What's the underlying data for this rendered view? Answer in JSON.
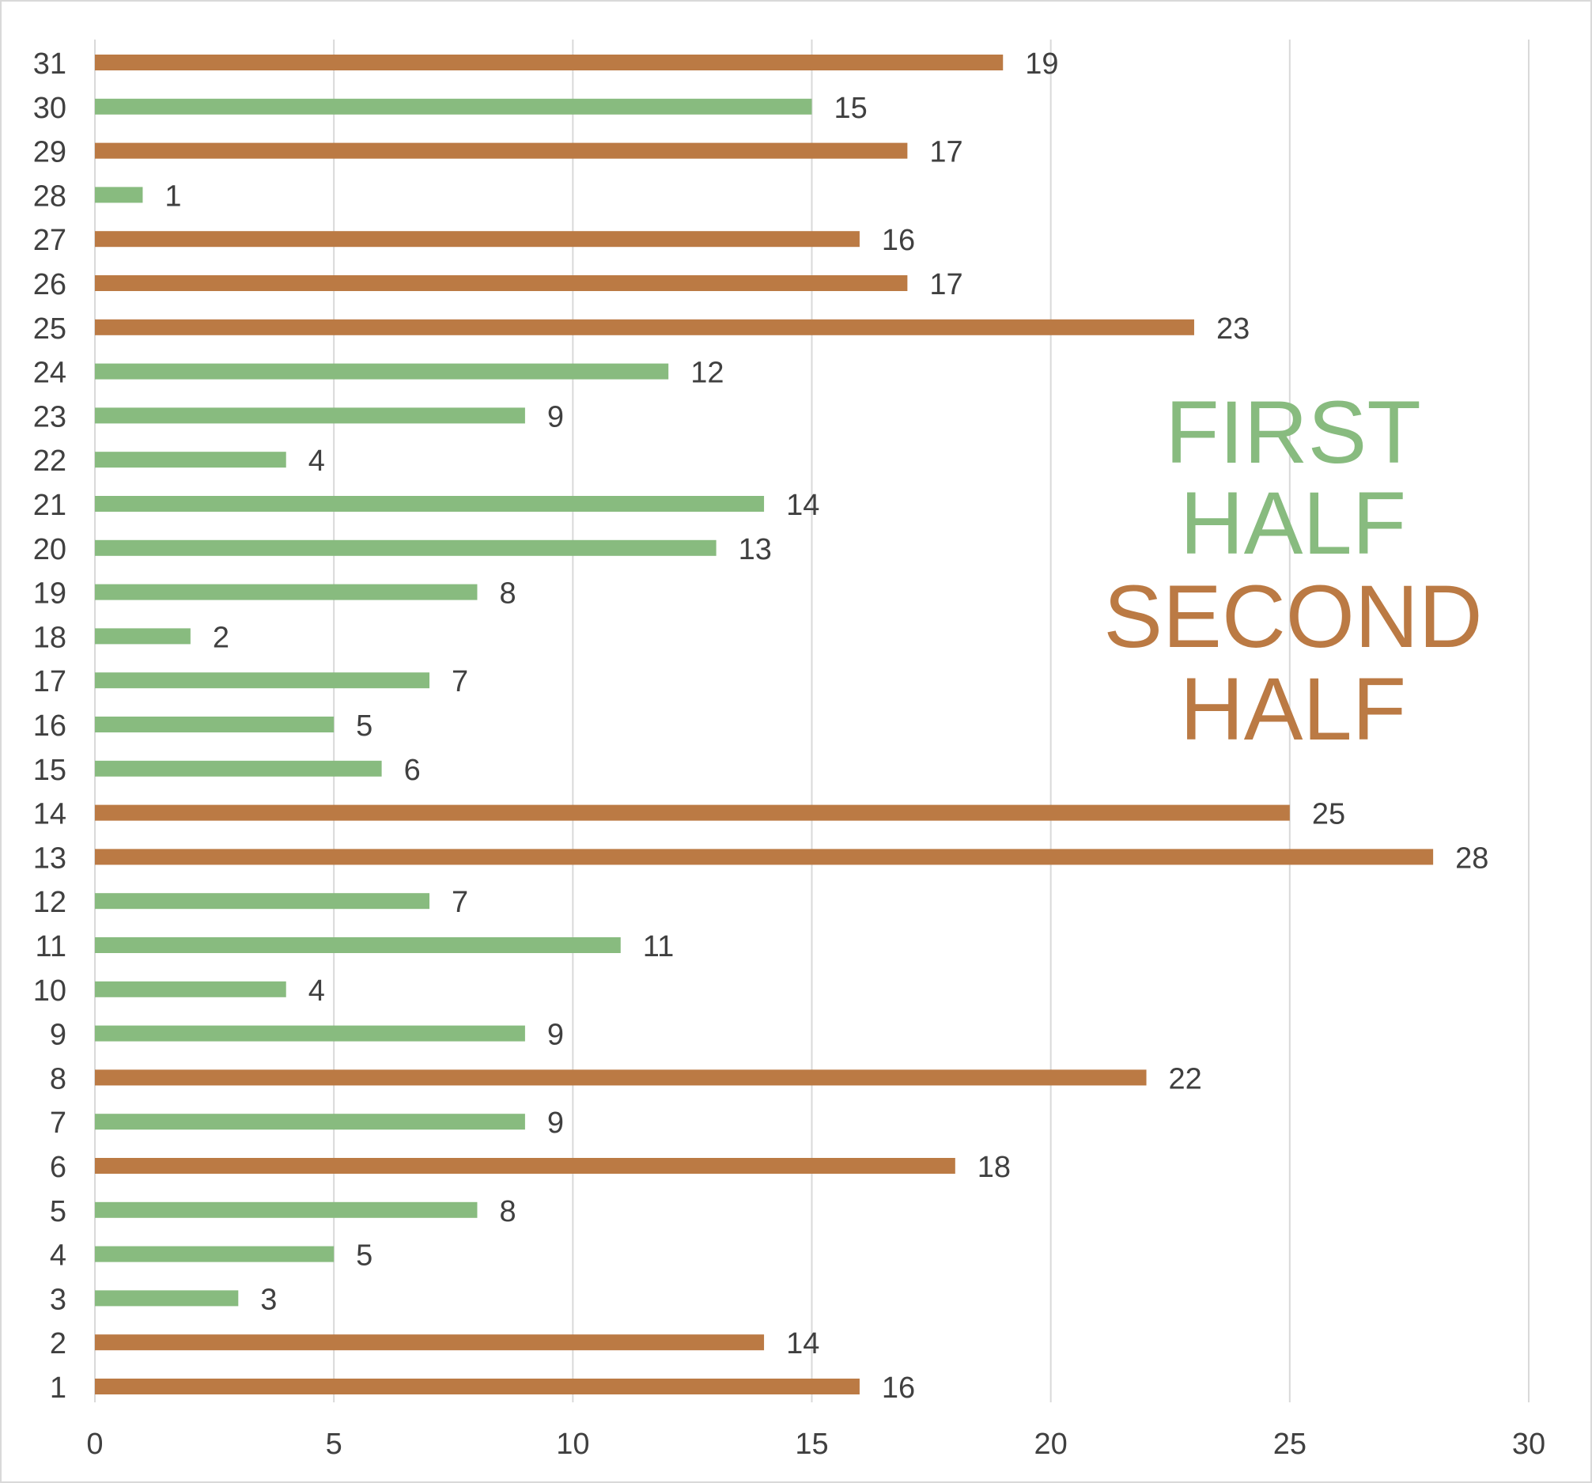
{
  "chart_data": {
    "type": "bar",
    "orientation": "horizontal",
    "title": "",
    "xlabel": "",
    "ylabel": "",
    "xlim": [
      0,
      30
    ],
    "x_ticks": [
      0,
      5,
      10,
      15,
      20,
      25,
      30
    ],
    "grid": true,
    "categories": [
      "1",
      "2",
      "3",
      "4",
      "5",
      "6",
      "7",
      "8",
      "9",
      "10",
      "11",
      "12",
      "13",
      "14",
      "15",
      "16",
      "17",
      "18",
      "19",
      "20",
      "21",
      "22",
      "23",
      "24",
      "25",
      "26",
      "27",
      "28",
      "29",
      "30",
      "31"
    ],
    "values": [
      16,
      14,
      3,
      5,
      8,
      18,
      9,
      22,
      9,
      4,
      11,
      7,
      28,
      25,
      6,
      5,
      7,
      2,
      8,
      13,
      14,
      4,
      9,
      12,
      23,
      17,
      16,
      1,
      17,
      15,
      19
    ],
    "groups": [
      "second",
      "second",
      "first",
      "first",
      "first",
      "second",
      "first",
      "second",
      "first",
      "first",
      "first",
      "first",
      "second",
      "second",
      "first",
      "first",
      "first",
      "first",
      "first",
      "first",
      "first",
      "first",
      "first",
      "first",
      "second",
      "second",
      "second",
      "first",
      "second",
      "first",
      "second"
    ],
    "legend": {
      "placement": "right",
      "entries": [
        {
          "key": "first",
          "lines": [
            "FIRST",
            "HALF"
          ],
          "color": "#88bb7f"
        },
        {
          "key": "second",
          "lines": [
            "SECOND",
            "HALF"
          ],
          "color": "#bb7a44"
        }
      ]
    },
    "colors": {
      "first": "#88bb7f",
      "second": "#bb7a44",
      "grid": "#d9d9d9",
      "text": "#404040"
    }
  }
}
